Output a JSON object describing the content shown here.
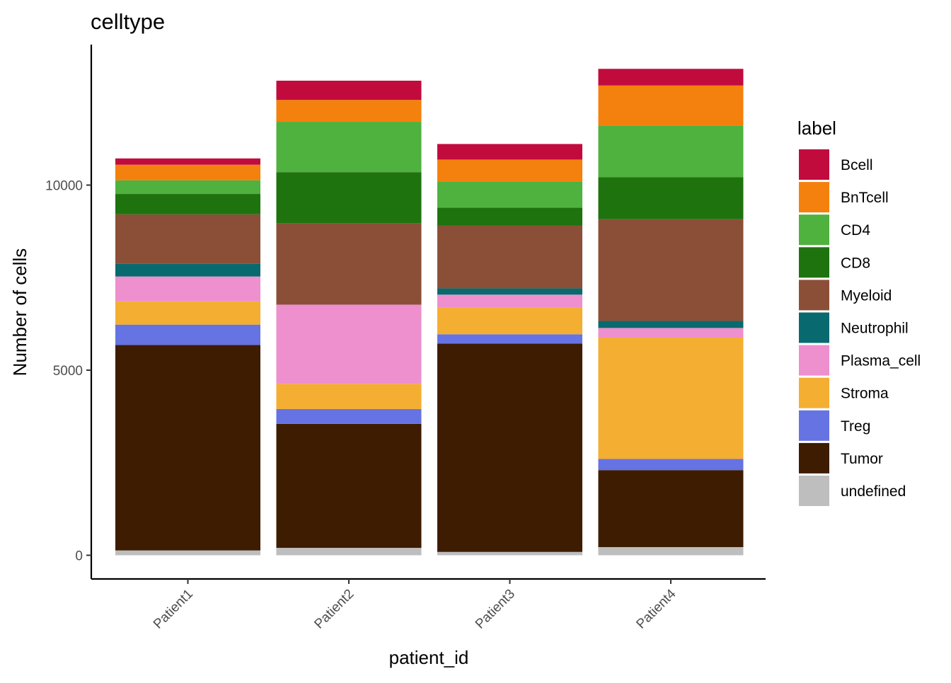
{
  "chart_data": {
    "type": "bar",
    "stacked": true,
    "title": "celltype",
    "xlabel": "patient_id",
    "ylabel": "Number of cells",
    "categories": [
      "Patient1",
      "Patient2",
      "Patient3",
      "Patient4"
    ],
    "ylim": [
      -620,
      13600
    ],
    "yticks": [
      0,
      5000,
      10000
    ],
    "ytick_labels": [
      "0",
      "5000",
      "10000"
    ],
    "grid": false,
    "legend": {
      "title": "label",
      "position": "right"
    },
    "series": [
      {
        "name": "undefined",
        "color": "#BEBEBE",
        "values": [
          130,
          200,
          90,
          220
        ]
      },
      {
        "name": "Tumor",
        "color": "#3D1C02",
        "values": [
          5550,
          3350,
          5630,
          2080
        ]
      },
      {
        "name": "Treg",
        "color": "#6673E3",
        "values": [
          550,
          400,
          250,
          300
        ]
      },
      {
        "name": "Stroma",
        "color": "#F4AE32",
        "values": [
          630,
          680,
          730,
          3280
        ]
      },
      {
        "name": "Plasma_cell",
        "color": "#EE8FCE",
        "values": [
          670,
          2140,
          340,
          260
        ]
      },
      {
        "name": "Neutrophil",
        "color": "#086A6F",
        "values": [
          340,
          0,
          170,
          190
        ]
      },
      {
        "name": "Myeloid",
        "color": "#8B4F37",
        "values": [
          1340,
          2200,
          1700,
          2750
        ]
      },
      {
        "name": "CD8",
        "color": "#1E730E",
        "values": [
          550,
          1380,
          480,
          1130
        ]
      },
      {
        "name": "CD4",
        "color": "#4FB13E",
        "values": [
          370,
          1360,
          710,
          1400
        ]
      },
      {
        "name": "BnTcell",
        "color": "#F4800D",
        "values": [
          420,
          590,
          590,
          1080
        ]
      },
      {
        "name": "Bcell",
        "color": "#C20B3D",
        "values": [
          170,
          520,
          420,
          450
        ]
      }
    ],
    "legend_order": [
      "Bcell",
      "BnTcell",
      "CD4",
      "CD8",
      "Myeloid",
      "Neutrophil",
      "Plasma_cell",
      "Stroma",
      "Treg",
      "Tumor",
      "undefined"
    ]
  }
}
